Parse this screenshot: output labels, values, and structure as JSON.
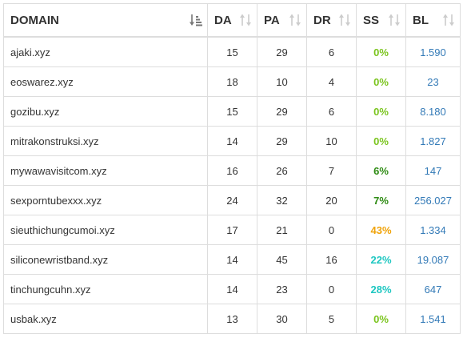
{
  "headers": {
    "domain": "DOMAIN",
    "da": "DA",
    "pa": "PA",
    "dr": "DR",
    "ss": "SS",
    "bl": "BL"
  },
  "icons": {
    "domain_sort": "sort-ascending-active-icon",
    "column_sort": "sort-arrows-icon"
  },
  "colors": {
    "ss_zero": "#7ac41d",
    "ss_low": "#2e8b13",
    "ss_mid": "#f0a30a",
    "ss_high": "#1fc7c1",
    "link": "#337ab7",
    "icon_active": "#777777",
    "icon_inactive": "#cccccc"
  },
  "rows": [
    {
      "domain": "ajaki.xyz",
      "da": "15",
      "pa": "29",
      "dr": "6",
      "ss": "0%",
      "ss_color": "#7ac41d",
      "bl": "1.590"
    },
    {
      "domain": "eoswarez.xyz",
      "da": "18",
      "pa": "10",
      "dr": "4",
      "ss": "0%",
      "ss_color": "#7ac41d",
      "bl": "23"
    },
    {
      "domain": "gozibu.xyz",
      "da": "15",
      "pa": "29",
      "dr": "6",
      "ss": "0%",
      "ss_color": "#7ac41d",
      "bl": "8.180"
    },
    {
      "domain": "mitrakonstruksi.xyz",
      "da": "14",
      "pa": "29",
      "dr": "10",
      "ss": "0%",
      "ss_color": "#7ac41d",
      "bl": "1.827"
    },
    {
      "domain": "mywawavisitcom.xyz",
      "da": "16",
      "pa": "26",
      "dr": "7",
      "ss": "6%",
      "ss_color": "#2e8b13",
      "bl": "147"
    },
    {
      "domain": "sexporntubexxx.xyz",
      "da": "24",
      "pa": "32",
      "dr": "20",
      "ss": "7%",
      "ss_color": "#2e8b13",
      "bl": "256.027"
    },
    {
      "domain": "sieuthichungcumoi.xyz",
      "da": "17",
      "pa": "21",
      "dr": "0",
      "ss": "43%",
      "ss_color": "#f0a30a",
      "bl": "1.334"
    },
    {
      "domain": "siliconewristband.xyz",
      "da": "14",
      "pa": "45",
      "dr": "16",
      "ss": "22%",
      "ss_color": "#1fc7c1",
      "bl": "19.087"
    },
    {
      "domain": "tinchungcuhn.xyz",
      "da": "14",
      "pa": "23",
      "dr": "0",
      "ss": "28%",
      "ss_color": "#1fc7c1",
      "bl": "647"
    },
    {
      "domain": "usbak.xyz",
      "da": "13",
      "pa": "30",
      "dr": "5",
      "ss": "0%",
      "ss_color": "#7ac41d",
      "bl": "1.541"
    }
  ]
}
